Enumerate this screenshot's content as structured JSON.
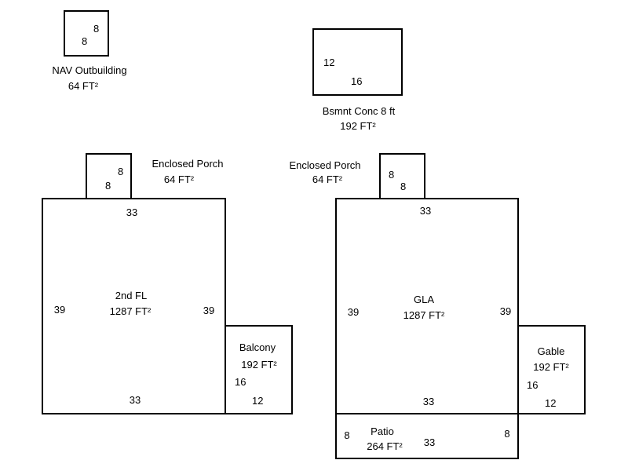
{
  "areas": {
    "nav_outbuilding": {
      "name": "NAV Outbuilding",
      "area": "64 FT²",
      "dims": [
        "8",
        "8"
      ]
    },
    "basement": {
      "name": "Bsmnt Conc 8 ft",
      "area": "192 FT²",
      "dims": [
        "12",
        "16"
      ]
    },
    "porch_left": {
      "name": "Enclosed Porch",
      "area": "64 FT²",
      "dims": [
        "8",
        "8"
      ]
    },
    "second_floor": {
      "name": "2nd FL",
      "area": "1287 FT²",
      "dims": [
        "33",
        "39",
        "39",
        "33"
      ]
    },
    "balcony": {
      "name": "Balcony",
      "area": "192 FT²",
      "dims": [
        "16",
        "12"
      ]
    },
    "porch_right": {
      "name": "Enclosed Porch",
      "area": "64 FT²",
      "dims": [
        "8",
        "8"
      ]
    },
    "gla": {
      "name": "GLA",
      "area": "1287 FT²",
      "dims": [
        "33",
        "39",
        "39",
        "33"
      ]
    },
    "gable": {
      "name": "Gable",
      "area": "192 FT²",
      "dims": [
        "16",
        "12"
      ]
    },
    "patio": {
      "name": "Patio",
      "area": "264 FT²",
      "dims": [
        "8",
        "33",
        "8"
      ]
    }
  }
}
